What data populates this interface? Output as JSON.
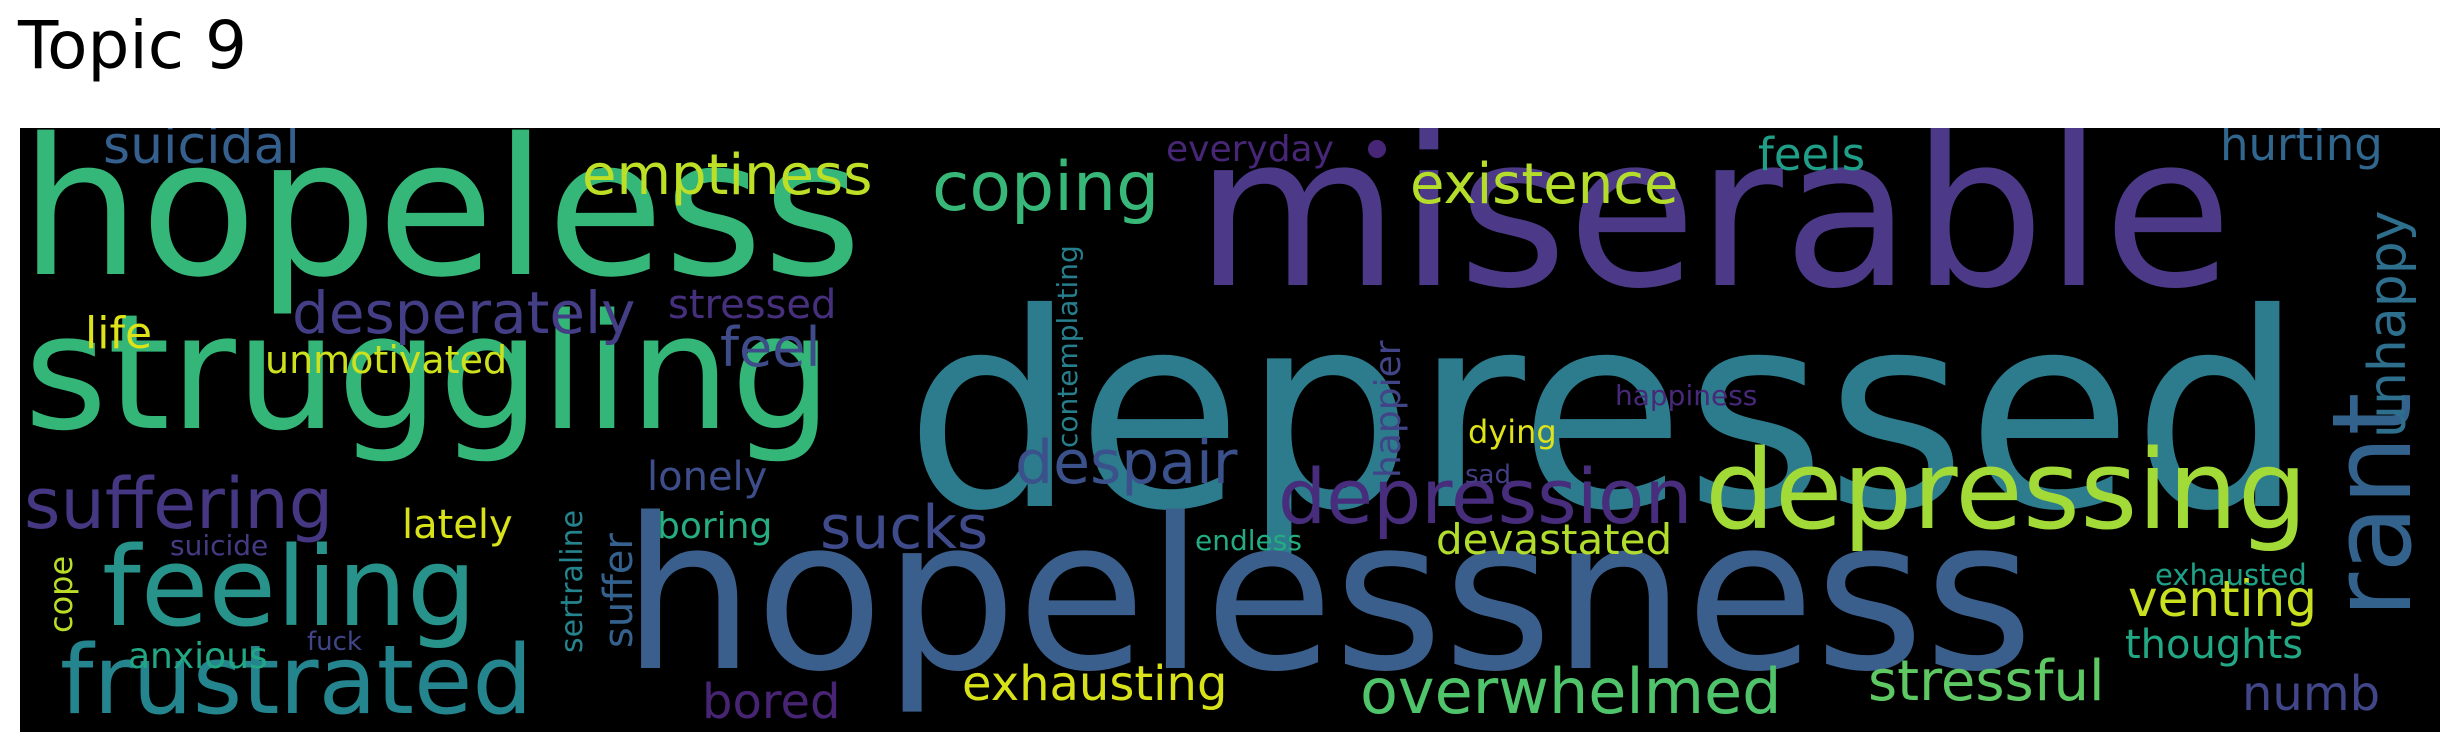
{
  "chart_data": {
    "type": "wordcloud",
    "title": "Topic 9",
    "background": "#000000",
    "palette": "viridis",
    "words": [
      {
        "text": "depressed",
        "color": "#2c7c8e"
      },
      {
        "text": "miserable",
        "color": "#4c3a88"
      },
      {
        "text": "hopelessness",
        "color": "#3b5f8c"
      },
      {
        "text": "hopeless",
        "color": "#35b779"
      },
      {
        "text": "struggling",
        "color": "#34b679"
      },
      {
        "text": "depressing",
        "color": "#a2da37"
      },
      {
        "text": "feeling",
        "color": "#27938b"
      },
      {
        "text": "frustrated",
        "color": "#24858e"
      },
      {
        "text": "rant",
        "color": "#33638d"
      },
      {
        "text": "depression",
        "color": "#472d7b"
      },
      {
        "text": "suffering",
        "color": "#453781"
      },
      {
        "text": "coping",
        "color": "#37b878"
      },
      {
        "text": "existence",
        "color": "#b5de2b"
      },
      {
        "text": "emptiness",
        "color": "#bddf26"
      },
      {
        "text": "overwhelmed",
        "color": "#4fc46a"
      },
      {
        "text": "despair",
        "color": "#3b518b"
      },
      {
        "text": "sucks",
        "color": "#3e4a89"
      },
      {
        "text": "desperately",
        "color": "#433e85"
      },
      {
        "text": "stressful",
        "color": "#5ec962"
      },
      {
        "text": "exhausting",
        "color": "#d8e219"
      },
      {
        "text": "suicidal",
        "color": "#355f8d"
      },
      {
        "text": "venting",
        "color": "#c8e020"
      },
      {
        "text": "feel",
        "color": "#3e4c8a"
      },
      {
        "text": "unhappy",
        "color": "#2e6f8e"
      },
      {
        "text": "hurting",
        "color": "#31678e"
      },
      {
        "text": "devastated",
        "color": "#b2dd2d"
      },
      {
        "text": "feels",
        "color": "#1f9f88"
      },
      {
        "text": "numb",
        "color": "#404688"
      },
      {
        "text": "stressed",
        "color": "#46307e"
      },
      {
        "text": "bored",
        "color": "#482475"
      },
      {
        "text": "unmotivated",
        "color": "#cde11d"
      },
      {
        "text": "lonely",
        "color": "#3d4e8a"
      },
      {
        "text": "lately",
        "color": "#d8e219"
      },
      {
        "text": "life",
        "color": "#dde318"
      },
      {
        "text": "boring",
        "color": "#26ad81"
      },
      {
        "text": "thoughts",
        "color": "#22a884"
      },
      {
        "text": "happier",
        "color": "#414487"
      },
      {
        "text": "everyday",
        "color": "#482677"
      },
      {
        "text": "suffer",
        "color": "#34618d"
      },
      {
        "text": "contemplating",
        "color": "#277f8e"
      },
      {
        "text": "anxious",
        "color": "#22a785"
      },
      {
        "text": "dying",
        "color": "#dde318"
      },
      {
        "text": "happiness",
        "color": "#482878"
      },
      {
        "text": "exhausted",
        "color": "#1fa187"
      },
      {
        "text": "cope",
        "color": "#bade28"
      },
      {
        "text": "sertraline",
        "color": "#25848e"
      },
      {
        "text": "endless",
        "color": "#25ab82"
      },
      {
        "text": "suicide",
        "color": "#443b84"
      },
      {
        "text": "sad",
        "color": "#433e85"
      },
      {
        "text": "fuck",
        "color": "#404688"
      }
    ]
  }
}
